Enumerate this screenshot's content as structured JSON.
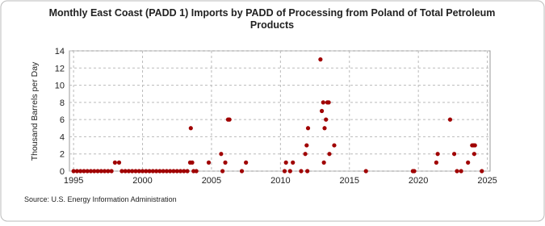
{
  "chart_data": {
    "type": "scatter",
    "title": "Monthly East Coast (PADD 1) Imports by PADD of Processing from Poland of Total Petroleum Products",
    "y_label": "Thousand Barrels per Day",
    "source": "Source: U.S. Energy Information Administration",
    "color": "#a00000",
    "grid": true,
    "xlim": [
      1994.7,
      2025.2
    ],
    "ylim": [
      0,
      14
    ],
    "xticks": [
      1995,
      2000,
      2005,
      2010,
      2015,
      2020,
      2025
    ],
    "yticks": [
      0,
      2,
      4,
      6,
      8,
      10,
      12,
      14
    ],
    "x": [
      1995.0,
      1995.25,
      1995.5,
      1995.75,
      1996.0,
      1996.25,
      1996.5,
      1996.75,
      1997.0,
      1997.25,
      1997.5,
      1997.75,
      1998.0,
      1998.3,
      1998.5,
      1998.75,
      1999.0,
      1999.25,
      1999.5,
      1999.75,
      2000.0,
      2000.25,
      2000.5,
      2000.75,
      2001.0,
      2001.25,
      2001.5,
      2001.75,
      2002.0,
      2002.25,
      2002.5,
      2002.75,
      2003.0,
      2003.25,
      2003.45,
      2003.5,
      2003.6,
      2003.7,
      2003.9,
      2004.8,
      2005.7,
      2005.8,
      2006.0,
      2006.2,
      2006.3,
      2007.2,
      2007.5,
      2010.3,
      2010.4,
      2010.7,
      2010.9,
      2011.5,
      2011.8,
      2011.9,
      2011.95,
      2012.0,
      2012.9,
      2013.0,
      2013.1,
      2013.15,
      2013.2,
      2013.3,
      2013.4,
      2013.5,
      2013.55,
      2013.9,
      2016.2,
      2019.6,
      2019.7,
      2021.3,
      2021.4,
      2022.3,
      2022.6,
      2022.8,
      2023.1,
      2023.6,
      2023.9,
      2024.0,
      2024.05,
      2024.1,
      2024.6
    ],
    "values": [
      0,
      0,
      0,
      0,
      0,
      0,
      0,
      0,
      0,
      0,
      0,
      0,
      1,
      1,
      0,
      0,
      0,
      0,
      0,
      0,
      0,
      0,
      0,
      0,
      0,
      0,
      0,
      0,
      0,
      0,
      0,
      0,
      0,
      0,
      1,
      5,
      1,
      0,
      0,
      1,
      2,
      0,
      1,
      6,
      6,
      0,
      1,
      0,
      1,
      0,
      1,
      0,
      2,
      3,
      0,
      5,
      13,
      7,
      8,
      1,
      5,
      6,
      8,
      8,
      2,
      3,
      0,
      0,
      0,
      1,
      2,
      6,
      2,
      0,
      0,
      1,
      3,
      3,
      2,
      3,
      0
    ]
  }
}
